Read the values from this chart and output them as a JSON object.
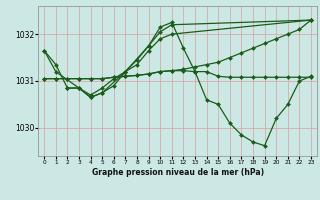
{
  "background_color": "#cce8e4",
  "grid_color": "#d9a0a0",
  "line_color": "#1a5c1a",
  "marker": "D",
  "markersize": 2.0,
  "linewidth": 0.9,
  "title": "Graphe pression niveau de la mer (hPa)",
  "xlim": [
    -0.5,
    23.5
  ],
  "ylim": [
    1029.4,
    1032.6
  ],
  "yticks": [
    1030,
    1031,
    1032
  ],
  "xticks": [
    0,
    1,
    2,
    3,
    4,
    5,
    6,
    7,
    8,
    9,
    10,
    11,
    12,
    13,
    14,
    15,
    16,
    17,
    18,
    19,
    20,
    21,
    22,
    23
  ],
  "series": [
    {
      "x": [
        0,
        1,
        2,
        3,
        4,
        5,
        6,
        7,
        8,
        9,
        10,
        11,
        23
      ],
      "y": [
        1031.65,
        1031.35,
        1030.85,
        1030.85,
        1030.7,
        1030.85,
        1031.05,
        1031.2,
        1031.35,
        1031.65,
        1031.9,
        1032.0,
        1032.3
      ]
    },
    {
      "x": [
        0,
        1,
        3,
        4,
        5,
        6,
        7,
        9,
        10,
        11,
        23
      ],
      "y": [
        1031.65,
        1031.2,
        1030.85,
        1030.65,
        1030.75,
        1030.9,
        1031.2,
        1031.75,
        1032.05,
        1032.2,
        1032.3
      ]
    },
    {
      "x": [
        2,
        3,
        4,
        5,
        7,
        8,
        9,
        10,
        11,
        12,
        13,
        14,
        15,
        16,
        17,
        18,
        19,
        20,
        21,
        22,
        23
      ],
      "y": [
        1030.85,
        1030.85,
        1030.65,
        1030.75,
        1031.2,
        1031.45,
        1031.75,
        1032.15,
        1032.25,
        1031.7,
        1031.2,
        1030.6,
        1030.5,
        1030.1,
        1029.85,
        1029.7,
        1029.62,
        1030.2,
        1030.5,
        1031.0,
        1031.1
      ]
    },
    {
      "x": [
        0,
        1,
        2,
        3,
        4,
        5,
        6,
        7,
        8,
        9,
        10,
        11,
        12,
        13,
        14,
        15,
        16,
        17,
        18,
        19,
        20,
        21,
        22,
        23
      ],
      "y": [
        1031.05,
        1031.05,
        1031.05,
        1031.05,
        1031.05,
        1031.05,
        1031.08,
        1031.1,
        1031.12,
        1031.15,
        1031.2,
        1031.22,
        1031.22,
        1031.2,
        1031.2,
        1031.1,
        1031.08,
        1031.08,
        1031.08,
        1031.08,
        1031.08,
        1031.08,
        1031.08,
        1031.08
      ]
    },
    {
      "x": [
        0,
        1,
        2,
        3,
        4,
        5,
        6,
        7,
        8,
        9,
        10,
        11,
        12,
        13,
        14,
        15,
        16,
        17,
        18,
        19,
        20,
        21,
        22,
        23
      ],
      "y": [
        1031.05,
        1031.05,
        1031.05,
        1031.05,
        1031.05,
        1031.05,
        1031.08,
        1031.1,
        1031.12,
        1031.15,
        1031.2,
        1031.22,
        1031.25,
        1031.3,
        1031.35,
        1031.4,
        1031.5,
        1031.6,
        1031.7,
        1031.8,
        1031.9,
        1032.0,
        1032.1,
        1032.3
      ]
    }
  ]
}
